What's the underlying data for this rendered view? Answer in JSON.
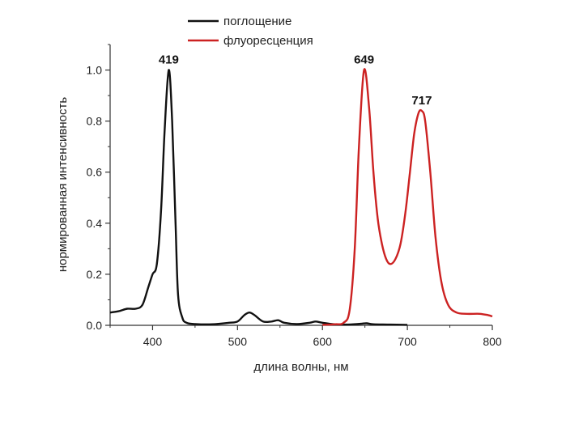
{
  "chart_data": {
    "type": "line",
    "xlabel": "длина волны, нм",
    "ylabel": "нормированная интенсивность",
    "xlim": [
      350,
      800
    ],
    "ylim": [
      0,
      1.1
    ],
    "x_ticks": [
      400,
      500,
      600,
      700,
      800
    ],
    "y_ticks": [
      0.0,
      0.2,
      0.4,
      0.6,
      0.8,
      1.0
    ],
    "x_tick_labels": [
      "400",
      "500",
      "600",
      "700",
      "800"
    ],
    "y_tick_labels": [
      "0.0",
      "0.2",
      "0.4",
      "0.6",
      "0.8",
      "1.0"
    ],
    "legend_position": "top",
    "grid": false,
    "series": [
      {
        "name": "поглощение",
        "color": "#111111",
        "points": [
          [
            350,
            0.05
          ],
          [
            360,
            0.055
          ],
          [
            370,
            0.065
          ],
          [
            380,
            0.065
          ],
          [
            388,
            0.08
          ],
          [
            395,
            0.15
          ],
          [
            400,
            0.2
          ],
          [
            405,
            0.24
          ],
          [
            410,
            0.45
          ],
          [
            414,
            0.75
          ],
          [
            419,
            1.0
          ],
          [
            423,
            0.8
          ],
          [
            427,
            0.4
          ],
          [
            430,
            0.12
          ],
          [
            435,
            0.03
          ],
          [
            440,
            0.01
          ],
          [
            450,
            0.005
          ],
          [
            470,
            0.004
          ],
          [
            490,
            0.01
          ],
          [
            500,
            0.015
          ],
          [
            508,
            0.04
          ],
          [
            514,
            0.05
          ],
          [
            520,
            0.04
          ],
          [
            530,
            0.015
          ],
          [
            540,
            0.015
          ],
          [
            548,
            0.02
          ],
          [
            555,
            0.01
          ],
          [
            570,
            0.005
          ],
          [
            585,
            0.01
          ],
          [
            592,
            0.015
          ],
          [
            600,
            0.01
          ],
          [
            615,
            0.004
          ],
          [
            630,
            0.003
          ],
          [
            645,
            0.006
          ],
          [
            652,
            0.008
          ],
          [
            660,
            0.004
          ],
          [
            680,
            0.003
          ],
          [
            700,
            0.002
          ]
        ]
      },
      {
        "name": "флуоресценция",
        "color": "#cc2222",
        "points": [
          [
            600,
            0.002
          ],
          [
            615,
            0.004
          ],
          [
            625,
            0.01
          ],
          [
            632,
            0.06
          ],
          [
            638,
            0.3
          ],
          [
            643,
            0.7
          ],
          [
            649,
            1.0
          ],
          [
            655,
            0.85
          ],
          [
            660,
            0.6
          ],
          [
            665,
            0.42
          ],
          [
            670,
            0.32
          ],
          [
            675,
            0.26
          ],
          [
            680,
            0.24
          ],
          [
            686,
            0.26
          ],
          [
            692,
            0.32
          ],
          [
            698,
            0.45
          ],
          [
            703,
            0.6
          ],
          [
            708,
            0.75
          ],
          [
            713,
            0.83
          ],
          [
            717,
            0.84
          ],
          [
            721,
            0.8
          ],
          [
            727,
            0.6
          ],
          [
            733,
            0.35
          ],
          [
            740,
            0.17
          ],
          [
            748,
            0.08
          ],
          [
            758,
            0.05
          ],
          [
            770,
            0.045
          ],
          [
            785,
            0.045
          ],
          [
            795,
            0.04
          ],
          [
            800,
            0.035
          ]
        ]
      }
    ],
    "annotations": [
      {
        "text": "419",
        "x": 419,
        "y": 1.0,
        "series": 0
      },
      {
        "text": "649",
        "x": 649,
        "y": 1.0,
        "series": 1
      },
      {
        "text": "717",
        "x": 717,
        "y": 0.84,
        "series": 1
      }
    ]
  }
}
